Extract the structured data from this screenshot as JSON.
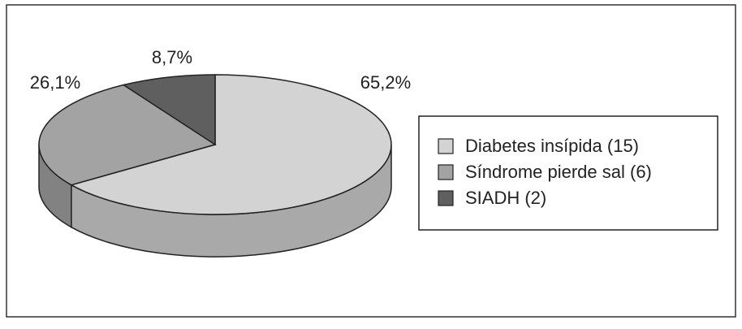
{
  "chart_data": {
    "type": "pie",
    "categories": [
      "Diabetes insípida (15)",
      "Síndrome pierde sal (6)",
      "SIADH (2)"
    ],
    "values": [
      65.2,
      26.1,
      8.7
    ],
    "value_labels": [
      "65,2%",
      "26,1%",
      "8,7%"
    ],
    "colors": [
      "#d3d3d3",
      "#a3a3a3",
      "#5f5f5f"
    ],
    "legend": "right"
  }
}
